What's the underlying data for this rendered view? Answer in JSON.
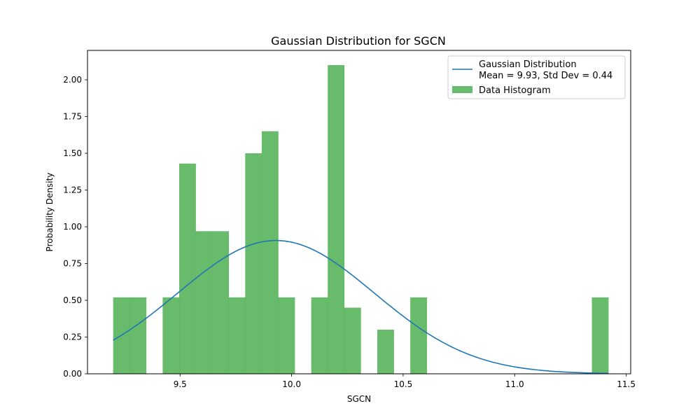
{
  "chart_data": {
    "type": "bar",
    "title": "Gaussian Distribution for SGCN",
    "xlabel": "SGCN",
    "ylabel": "Probability Density",
    "xlim": [
      9.085,
      11.52
    ],
    "ylim": [
      0,
      2.2
    ],
    "xticks": [
      9.5,
      10.0,
      10.5,
      11.0,
      11.5
    ],
    "xtick_labels": [
      "9.5",
      "10.0",
      "10.5",
      "11.0",
      "11.5"
    ],
    "yticks": [
      0,
      0.25,
      0.5,
      0.75,
      1.0,
      1.25,
      1.5,
      1.75,
      2.0
    ],
    "ytick_labels": [
      "0.00",
      "0.25",
      "0.50",
      "0.75",
      "1.00",
      "1.25",
      "1.50",
      "1.75",
      "2.00"
    ],
    "grid": false,
    "legend_position": "top-right",
    "histogram": {
      "name": "Data Histogram",
      "color": "#4caf50",
      "bin_start": 9.2,
      "bin_width": 0.074,
      "values": [
        0.52,
        0.52,
        0,
        0.52,
        1.43,
        0.97,
        0.97,
        0.52,
        1.5,
        1.65,
        0.52,
        0,
        0.52,
        2.1,
        0.45,
        0,
        0.3,
        0,
        0.52,
        0,
        0,
        0,
        0,
        0,
        0,
        0,
        0,
        0,
        0,
        0.52
      ]
    },
    "gaussian": {
      "name_line1": "Gaussian Distribution",
      "name_line2": "Mean = 9.93, Std Dev = 0.44",
      "color": "#1f77b4",
      "mean": 9.93,
      "std": 0.44,
      "x_start": 9.2,
      "x_end": 11.42
    }
  }
}
